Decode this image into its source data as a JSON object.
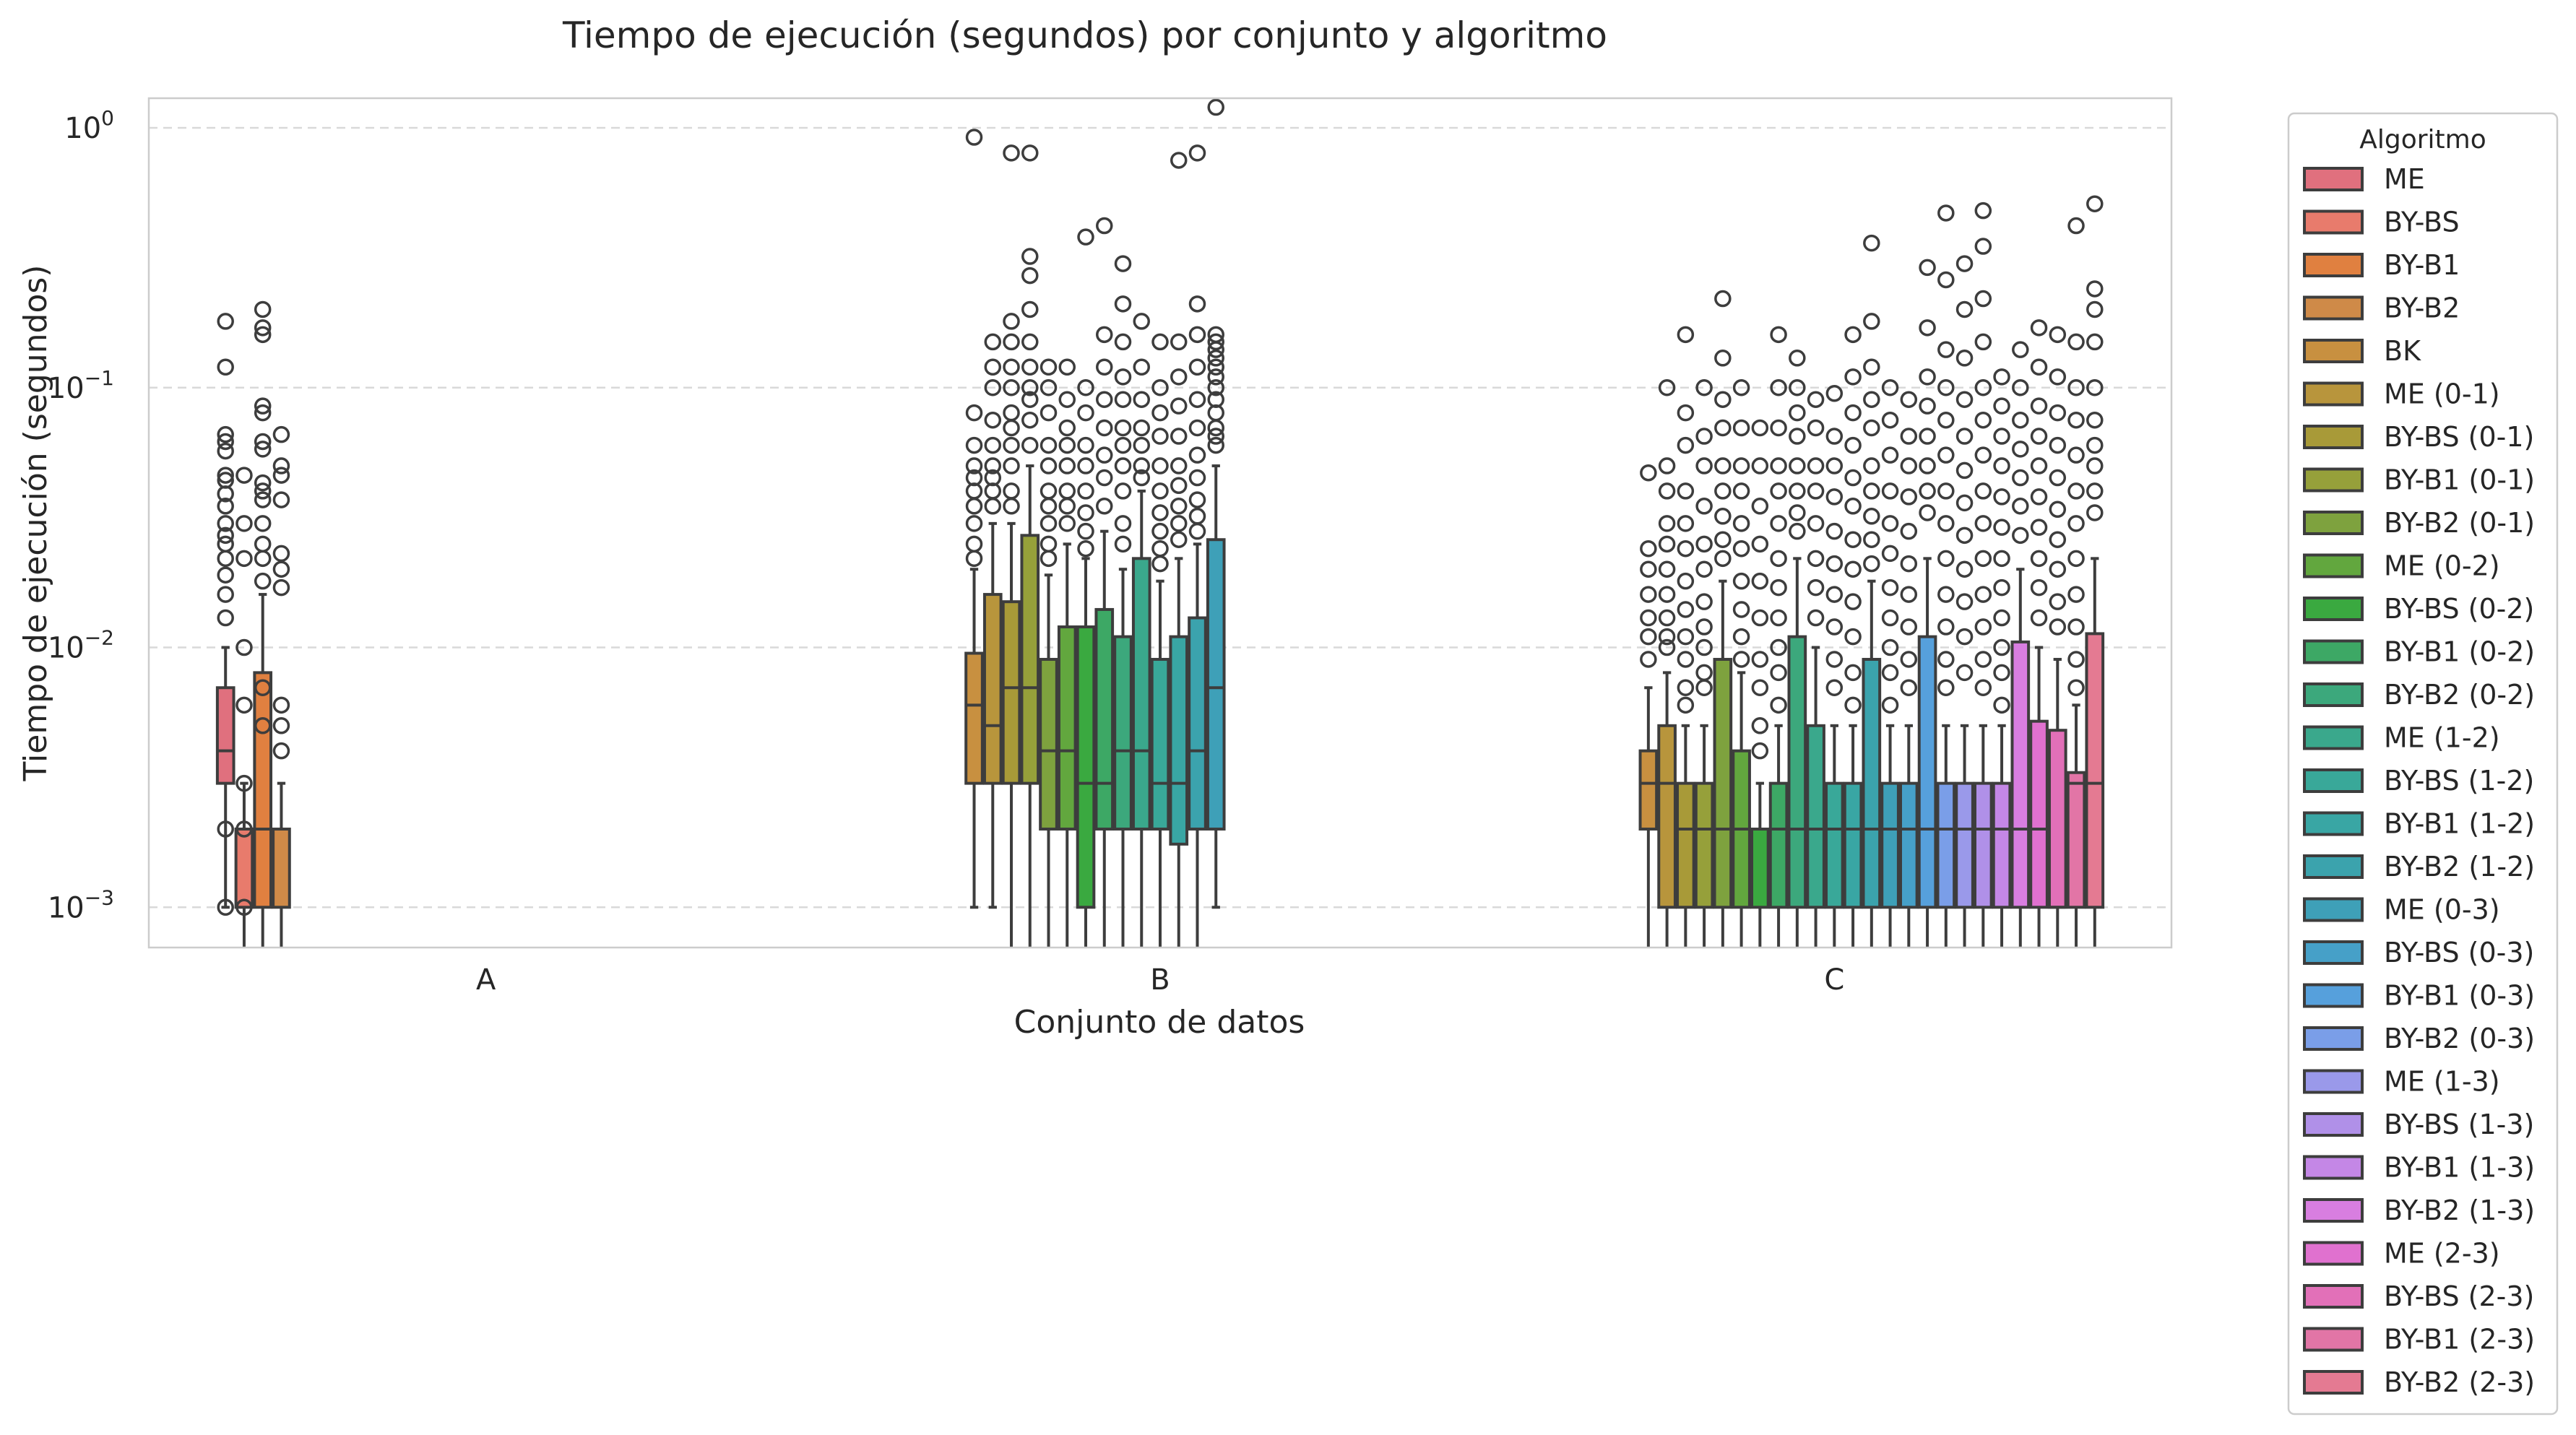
{
  "chart_data": {
    "type": "box",
    "title": "Tiempo de ejecución (segundos) por conjunto y algoritmo",
    "xlabel": "Conjunto de datos",
    "ylabel": "Tiempo de ejecución (segundos)",
    "yscale": "log",
    "ylim": [
      0.0007,
      1.3
    ],
    "yticks": [
      {
        "value": 0.001,
        "base": "10",
        "exp": "−3"
      },
      {
        "value": 0.01,
        "base": "10",
        "exp": "−2"
      },
      {
        "value": 0.1,
        "base": "10",
        "exp": "−1"
      },
      {
        "value": 1,
        "base": "10",
        "exp": "0"
      }
    ],
    "grid": "y dashed",
    "categories": [
      "A",
      "B",
      "C"
    ],
    "legend": {
      "title": "Algoritmo",
      "placement": "outside right",
      "entries": [
        {
          "label": "ME",
          "color": "#e0707e"
        },
        {
          "label": "BY-BS",
          "color": "#e87b6c"
        },
        {
          "label": "BY-B1",
          "color": "#e08040"
        },
        {
          "label": "BY-B2",
          "color": "#cf8a48"
        },
        {
          "label": "BK",
          "color": "#c89040"
        },
        {
          "label": "ME (0-1)",
          "color": "#b8953c"
        },
        {
          "label": "BY-BS (0-1)",
          "color": "#a89a38"
        },
        {
          "label": "BY-B1 (0-1)",
          "color": "#96a03a"
        },
        {
          "label": "BY-B2 (0-1)",
          "color": "#7ea23e"
        },
        {
          "label": "ME (0-2)",
          "color": "#62a73e"
        },
        {
          "label": "BY-BS (0-2)",
          "color": "#3aa940"
        },
        {
          "label": "BY-B1 (0-2)",
          "color": "#3da865"
        },
        {
          "label": "BY-B2 (0-2)",
          "color": "#3ca87c"
        },
        {
          "label": "ME (1-2)",
          "color": "#3aa88c"
        },
        {
          "label": "BY-BS (1-2)",
          "color": "#39a899"
        },
        {
          "label": "BY-B1 (1-2)",
          "color": "#39a6a4"
        },
        {
          "label": "BY-B2 (1-2)",
          "color": "#3ba3ad"
        },
        {
          "label": "ME (0-3)",
          "color": "#3ea0b8"
        },
        {
          "label": "BY-BS (0-3)",
          "color": "#46a0c8"
        },
        {
          "label": "BY-B1 (0-3)",
          "color": "#56a0dc"
        },
        {
          "label": "BY-B2 (0-3)",
          "color": "#7a9ee8"
        },
        {
          "label": "ME (1-3)",
          "color": "#9a99ea"
        },
        {
          "label": "BY-BS (1-3)",
          "color": "#b090e8"
        },
        {
          "label": "BY-B1 (1-3)",
          "color": "#c487e6"
        },
        {
          "label": "BY-B2 (1-3)",
          "color": "#d87ee0"
        },
        {
          "label": "ME (2-3)",
          "color": "#e071cf"
        },
        {
          "label": "BY-BS (2-3)",
          "color": "#e270b8"
        },
        {
          "label": "BY-B1 (2-3)",
          "color": "#e275a6"
        },
        {
          "label": "BY-B2 (2-3)",
          "color": "#e47a92"
        }
      ]
    },
    "groups": {
      "A": [
        {
          "algo": 0,
          "q1": 0.003,
          "med": 0.004,
          "q3": 0.007,
          "lo": 0.001,
          "hi": 0.01,
          "fliers": [
            0.18,
            0.12,
            0.066,
            0.062,
            0.057,
            0.046,
            0.044,
            0.039,
            0.035,
            0.03,
            0.027,
            0.025,
            0.022,
            0.019,
            0.016,
            0.013,
            0.002,
            0.001
          ]
        },
        {
          "algo": 1,
          "q1": 0.001,
          "med": 0.002,
          "q3": 0.002,
          "lo": 0.0005,
          "hi": 0.003,
          "fliers": [
            0.046,
            0.03,
            0.022,
            0.01,
            0.006,
            0.003,
            0.002,
            0.001
          ]
        },
        {
          "algo": 2,
          "q1": 0.001,
          "med": 0.002,
          "q3": 0.008,
          "lo": 0.0005,
          "hi": 0.016,
          "fliers": [
            0.2,
            0.17,
            0.16,
            0.085,
            0.08,
            0.062,
            0.058,
            0.043,
            0.04,
            0.037,
            0.03,
            0.025,
            0.022,
            0.018,
            0.007,
            0.005
          ]
        },
        {
          "algo": 3,
          "q1": 0.001,
          "med": 0.002,
          "q3": 0.002,
          "lo": 0.0005,
          "hi": 0.003,
          "fliers": [
            0.066,
            0.05,
            0.046,
            0.037,
            0.023,
            0.02,
            0.017,
            0.006,
            0.005,
            0.004
          ]
        }
      ],
      "B": [
        {
          "algo": 4,
          "q1": 0.003,
          "med": 0.006,
          "q3": 0.0095,
          "lo": 0.001,
          "hi": 0.02,
          "fliers": [
            0.92,
            0.08,
            0.06,
            0.05,
            0.045,
            0.04,
            0.035,
            0.03,
            0.025,
            0.022
          ]
        },
        {
          "algo": 5,
          "q1": 0.003,
          "med": 0.005,
          "q3": 0.016,
          "lo": 0.001,
          "hi": 0.03,
          "fliers": [
            0.15,
            0.12,
            0.1,
            0.075,
            0.06,
            0.05,
            0.045,
            0.04,
            0.035
          ]
        },
        {
          "algo": 6,
          "q1": 0.003,
          "med": 0.007,
          "q3": 0.015,
          "lo": 0.0005,
          "hi": 0.03,
          "fliers": [
            0.8,
            0.18,
            0.15,
            0.12,
            0.1,
            0.08,
            0.07,
            0.06,
            0.05,
            0.04,
            0.035
          ]
        },
        {
          "algo": 7,
          "q1": 0.003,
          "med": 0.007,
          "q3": 0.027,
          "lo": 0.0005,
          "hi": 0.05,
          "fliers": [
            0.8,
            0.32,
            0.27,
            0.2,
            0.15,
            0.12,
            0.1,
            0.09,
            0.075,
            0.06
          ]
        },
        {
          "algo": 8,
          "q1": 0.002,
          "med": 0.004,
          "q3": 0.009,
          "lo": 0.0005,
          "hi": 0.019,
          "fliers": [
            0.12,
            0.1,
            0.08,
            0.06,
            0.05,
            0.04,
            0.035,
            0.03,
            0.025,
            0.022
          ]
        },
        {
          "algo": 9,
          "q1": 0.002,
          "med": 0.004,
          "q3": 0.012,
          "lo": 0.0005,
          "hi": 0.025,
          "fliers": [
            0.12,
            0.09,
            0.07,
            0.06,
            0.05,
            0.04,
            0.035,
            0.03
          ]
        },
        {
          "algo": 10,
          "q1": 0.001,
          "med": 0.003,
          "q3": 0.012,
          "lo": 0.0005,
          "hi": 0.022,
          "fliers": [
            0.38,
            0.1,
            0.08,
            0.06,
            0.05,
            0.04,
            0.033,
            0.028,
            0.024
          ]
        },
        {
          "algo": 11,
          "q1": 0.002,
          "med": 0.003,
          "q3": 0.014,
          "lo": 0.0005,
          "hi": 0.028,
          "fliers": [
            0.42,
            0.16,
            0.12,
            0.09,
            0.07,
            0.055,
            0.045,
            0.035
          ]
        },
        {
          "algo": 12,
          "q1": 0.002,
          "med": 0.004,
          "q3": 0.011,
          "lo": 0.0005,
          "hi": 0.02,
          "fliers": [
            0.3,
            0.21,
            0.15,
            0.11,
            0.09,
            0.07,
            0.06,
            0.05,
            0.04,
            0.03,
            0.025
          ]
        },
        {
          "algo": 13,
          "q1": 0.002,
          "med": 0.004,
          "q3": 0.022,
          "lo": 0.0005,
          "hi": 0.04,
          "fliers": [
            0.18,
            0.12,
            0.09,
            0.07,
            0.06,
            0.05,
            0.045
          ]
        },
        {
          "algo": 14,
          "q1": 0.002,
          "med": 0.003,
          "q3": 0.009,
          "lo": 0.0005,
          "hi": 0.018,
          "fliers": [
            0.15,
            0.1,
            0.08,
            0.065,
            0.05,
            0.04,
            0.033,
            0.028,
            0.024,
            0.021
          ]
        },
        {
          "algo": 15,
          "q1": 0.00175,
          "med": 0.003,
          "q3": 0.011,
          "lo": 0.0005,
          "hi": 0.022,
          "fliers": [
            0.75,
            0.15,
            0.11,
            0.085,
            0.065,
            0.05,
            0.042,
            0.035,
            0.03,
            0.026
          ]
        },
        {
          "algo": 16,
          "q1": 0.002,
          "med": 0.004,
          "q3": 0.013,
          "lo": 0.0005,
          "hi": 0.025,
          "fliers": [
            0.8,
            0.21,
            0.16,
            0.12,
            0.09,
            0.07,
            0.055,
            0.045,
            0.037,
            0.032,
            0.028
          ]
        },
        {
          "algo": 17,
          "q1": 0.002,
          "med": 0.007,
          "q3": 0.026,
          "lo": 0.001,
          "hi": 0.05,
          "fliers": [
            1.2,
            0.16,
            0.15,
            0.14,
            0.13,
            0.12,
            0.11,
            0.1,
            0.09,
            0.08,
            0.07,
            0.065,
            0.06
          ]
        }
      ],
      "C": [
        {
          "algo": 4,
          "q1": 0.002,
          "med": 0.003,
          "q3": 0.004,
          "lo": 0.0005,
          "hi": 0.007,
          "fliers": [
            0.047,
            0.024,
            0.02,
            0.016,
            0.013,
            0.011,
            0.009
          ]
        },
        {
          "algo": 5,
          "q1": 0.001,
          "med": 0.003,
          "q3": 0.005,
          "lo": 0.0005,
          "hi": 0.008,
          "fliers": [
            0.1,
            0.05,
            0.04,
            0.03,
            0.025,
            0.02,
            0.016,
            0.013,
            0.011,
            0.01
          ]
        },
        {
          "algo": 6,
          "q1": 0.001,
          "med": 0.002,
          "q3": 0.003,
          "lo": 0.0005,
          "hi": 0.005,
          "fliers": [
            0.16,
            0.08,
            0.06,
            0.04,
            0.03,
            0.024,
            0.018,
            0.014,
            0.011,
            0.009,
            0.007,
            0.006
          ]
        },
        {
          "algo": 7,
          "q1": 0.001,
          "med": 0.002,
          "q3": 0.003,
          "lo": 0.0005,
          "hi": 0.005,
          "fliers": [
            0.1,
            0.065,
            0.05,
            0.035,
            0.025,
            0.02,
            0.015,
            0.012,
            0.01,
            0.008,
            0.007
          ]
        },
        {
          "algo": 8,
          "q1": 0.001,
          "med": 0.002,
          "q3": 0.009,
          "lo": 0.0005,
          "hi": 0.018,
          "fliers": [
            0.22,
            0.13,
            0.09,
            0.07,
            0.05,
            0.04,
            0.032,
            0.026,
            0.022
          ]
        },
        {
          "algo": 9,
          "q1": 0.001,
          "med": 0.002,
          "q3": 0.004,
          "lo": 0.0005,
          "hi": 0.008,
          "fliers": [
            0.1,
            0.07,
            0.05,
            0.04,
            0.03,
            0.024,
            0.018,
            0.014,
            0.011,
            0.009
          ]
        },
        {
          "algo": 10,
          "q1": 0.001,
          "med": 0.002,
          "q3": 0.002,
          "lo": 0.0005,
          "hi": 0.003,
          "fliers": [
            0.07,
            0.05,
            0.035,
            0.025,
            0.018,
            0.013,
            0.009,
            0.007,
            0.005,
            0.004
          ]
        },
        {
          "algo": 11,
          "q1": 0.001,
          "med": 0.002,
          "q3": 0.003,
          "lo": 0.0005,
          "hi": 0.005,
          "fliers": [
            0.16,
            0.1,
            0.07,
            0.05,
            0.04,
            0.03,
            0.022,
            0.017,
            0.013,
            0.01,
            0.008,
            0.006
          ]
        },
        {
          "algo": 12,
          "q1": 0.001,
          "med": 0.002,
          "q3": 0.011,
          "lo": 0.0005,
          "hi": 0.022,
          "fliers": [
            0.13,
            0.1,
            0.08,
            0.065,
            0.05,
            0.04,
            0.033,
            0.028
          ]
        },
        {
          "algo": 13,
          "q1": 0.001,
          "med": 0.002,
          "q3": 0.005,
          "lo": 0.0005,
          "hi": 0.01,
          "fliers": [
            0.09,
            0.07,
            0.05,
            0.04,
            0.03,
            0.022,
            0.017,
            0.013
          ]
        },
        {
          "algo": 14,
          "q1": 0.001,
          "med": 0.002,
          "q3": 0.003,
          "lo": 0.0005,
          "hi": 0.005,
          "fliers": [
            0.095,
            0.065,
            0.05,
            0.038,
            0.028,
            0.021,
            0.016,
            0.012,
            0.009,
            0.007
          ]
        },
        {
          "algo": 15,
          "q1": 0.001,
          "med": 0.002,
          "q3": 0.003,
          "lo": 0.0005,
          "hi": 0.005,
          "fliers": [
            0.16,
            0.11,
            0.08,
            0.06,
            0.045,
            0.035,
            0.026,
            0.02,
            0.015,
            0.011,
            0.008,
            0.006
          ]
        },
        {
          "algo": 16,
          "q1": 0.001,
          "med": 0.002,
          "q3": 0.009,
          "lo": 0.0005,
          "hi": 0.018,
          "fliers": [
            0.36,
            0.18,
            0.12,
            0.09,
            0.07,
            0.05,
            0.04,
            0.032,
            0.026,
            0.021
          ]
        },
        {
          "algo": 17,
          "q1": 0.001,
          "med": 0.002,
          "q3": 0.003,
          "lo": 0.0005,
          "hi": 0.005,
          "fliers": [
            0.1,
            0.075,
            0.055,
            0.04,
            0.03,
            0.023,
            0.017,
            0.013,
            0.01,
            0.008,
            0.006
          ]
        },
        {
          "algo": 18,
          "q1": 0.001,
          "med": 0.002,
          "q3": 0.003,
          "lo": 0.0005,
          "hi": 0.005,
          "fliers": [
            0.09,
            0.065,
            0.05,
            0.038,
            0.028,
            0.021,
            0.016,
            0.012,
            0.009,
            0.007
          ]
        },
        {
          "algo": 19,
          "q1": 0.001,
          "med": 0.002,
          "q3": 0.011,
          "lo": 0.0005,
          "hi": 0.022,
          "fliers": [
            0.29,
            0.17,
            0.11,
            0.085,
            0.065,
            0.05,
            0.04,
            0.033
          ]
        },
        {
          "algo": 20,
          "q1": 0.001,
          "med": 0.002,
          "q3": 0.003,
          "lo": 0.0005,
          "hi": 0.005,
          "fliers": [
            0.47,
            0.26,
            0.14,
            0.1,
            0.075,
            0.055,
            0.04,
            0.03,
            0.022,
            0.016,
            0.012,
            0.009,
            0.007
          ]
        },
        {
          "algo": 21,
          "q1": 0.001,
          "med": 0.002,
          "q3": 0.003,
          "lo": 0.0005,
          "hi": 0.005,
          "fliers": [
            0.3,
            0.2,
            0.13,
            0.09,
            0.065,
            0.048,
            0.036,
            0.027,
            0.02,
            0.015,
            0.011,
            0.008
          ]
        },
        {
          "algo": 22,
          "q1": 0.001,
          "med": 0.002,
          "q3": 0.003,
          "lo": 0.0005,
          "hi": 0.005,
          "fliers": [
            0.48,
            0.35,
            0.22,
            0.15,
            0.1,
            0.075,
            0.055,
            0.04,
            0.03,
            0.022,
            0.016,
            0.012,
            0.009,
            0.007
          ]
        },
        {
          "algo": 23,
          "q1": 0.001,
          "med": 0.002,
          "q3": 0.003,
          "lo": 0.0005,
          "hi": 0.005,
          "fliers": [
            0.11,
            0.085,
            0.065,
            0.05,
            0.038,
            0.029,
            0.022,
            0.017,
            0.013,
            0.01,
            0.008,
            0.006
          ]
        },
        {
          "algo": 24,
          "q1": 0.001,
          "med": 0.002,
          "q3": 0.0105,
          "lo": 0.0005,
          "hi": 0.02,
          "fliers": [
            0.14,
            0.1,
            0.075,
            0.058,
            0.045,
            0.035,
            0.027
          ]
        },
        {
          "algo": 25,
          "q1": 0.001,
          "med": 0.002,
          "q3": 0.0052,
          "lo": 0.0005,
          "hi": 0.01,
          "fliers": [
            0.17,
            0.12,
            0.085,
            0.065,
            0.05,
            0.038,
            0.029,
            0.022,
            0.017,
            0.013
          ]
        },
        {
          "algo": 26,
          "q1": 0.001,
          "med": 0.001,
          "q3": 0.0048,
          "lo": 0.0005,
          "hi": 0.009,
          "fliers": [
            0.16,
            0.11,
            0.08,
            0.06,
            0.045,
            0.034,
            0.026,
            0.02,
            0.015,
            0.012
          ]
        },
        {
          "algo": 27,
          "q1": 0.001,
          "med": 0.003,
          "q3": 0.0033,
          "lo": 0.0005,
          "hi": 0.006,
          "fliers": [
            0.42,
            0.15,
            0.1,
            0.075,
            0.055,
            0.04,
            0.03,
            0.022,
            0.016,
            0.012,
            0.009,
            0.007
          ]
        },
        {
          "algo": 28,
          "q1": 0.001,
          "med": 0.003,
          "q3": 0.0113,
          "lo": 0.0005,
          "hi": 0.022,
          "fliers": [
            0.51,
            0.24,
            0.2,
            0.15,
            0.1,
            0.075,
            0.06,
            0.05,
            0.04,
            0.033
          ]
        }
      ]
    }
  }
}
